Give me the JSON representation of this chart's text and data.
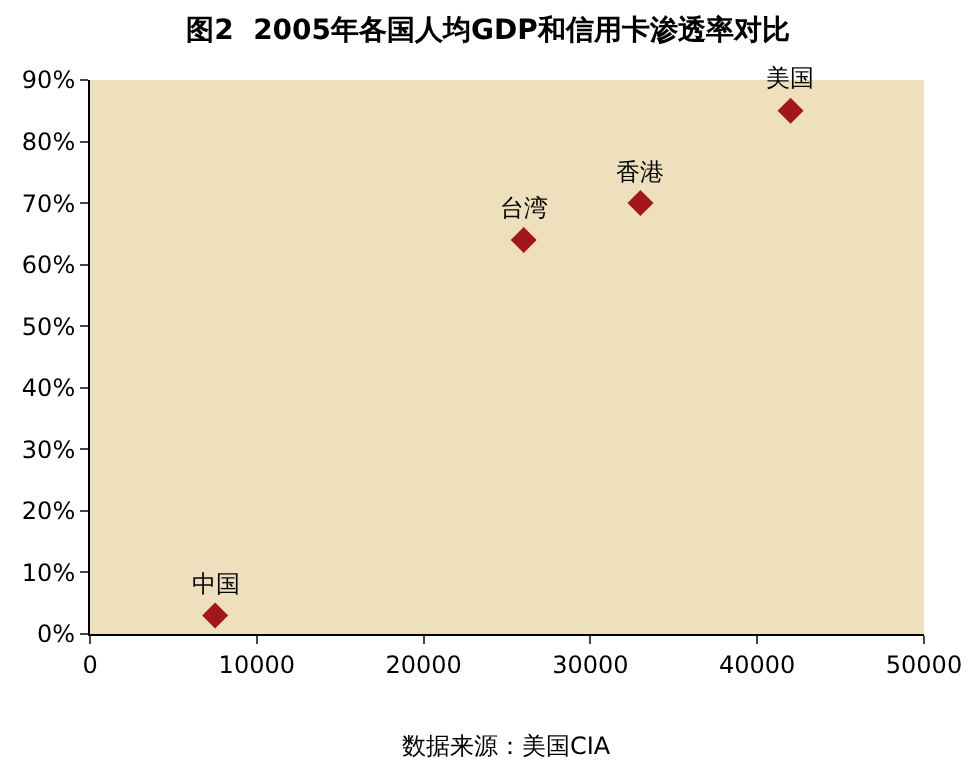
{
  "chart_data": {
    "type": "scatter",
    "title": "图2  2005年各国人均GDP和信用卡渗透率对比",
    "x": [
      7500,
      26000,
      33000,
      42000
    ],
    "series": [
      {
        "color": "#a3171c",
        "values": [
          3,
          64,
          70,
          85
        ]
      }
    ],
    "xlim": [
      0,
      50000
    ],
    "xticks": [
      0,
      10000,
      20000,
      30000,
      40000,
      50000
    ],
    "ylim": [
      0,
      90
    ],
    "yticks": [
      {
        "value": 0,
        "label": "0%"
      },
      {
        "value": 10,
        "label": "10%"
      },
      {
        "value": 20,
        "label": "20%"
      },
      {
        "value": 30,
        "label": "30%"
      },
      {
        "value": 40,
        "label": "40%"
      },
      {
        "value": 50,
        "label": "50%"
      },
      {
        "value": 60,
        "label": "60%"
      },
      {
        "value": 70,
        "label": "70%"
      },
      {
        "value": 80,
        "label": "80%"
      },
      {
        "value": 90,
        "label": "90%"
      }
    ],
    "marker": "diamond",
    "grid": false,
    "annotations": [
      {
        "text": "中国",
        "x": 7500,
        "y": 3
      },
      {
        "text": "台湾",
        "x": 26000,
        "y": 64
      },
      {
        "text": "香港",
        "x": 33000,
        "y": 70
      },
      {
        "text": "美国",
        "x": 42000,
        "y": 85
      },
      "数据来源：美国CIA"
    ]
  }
}
